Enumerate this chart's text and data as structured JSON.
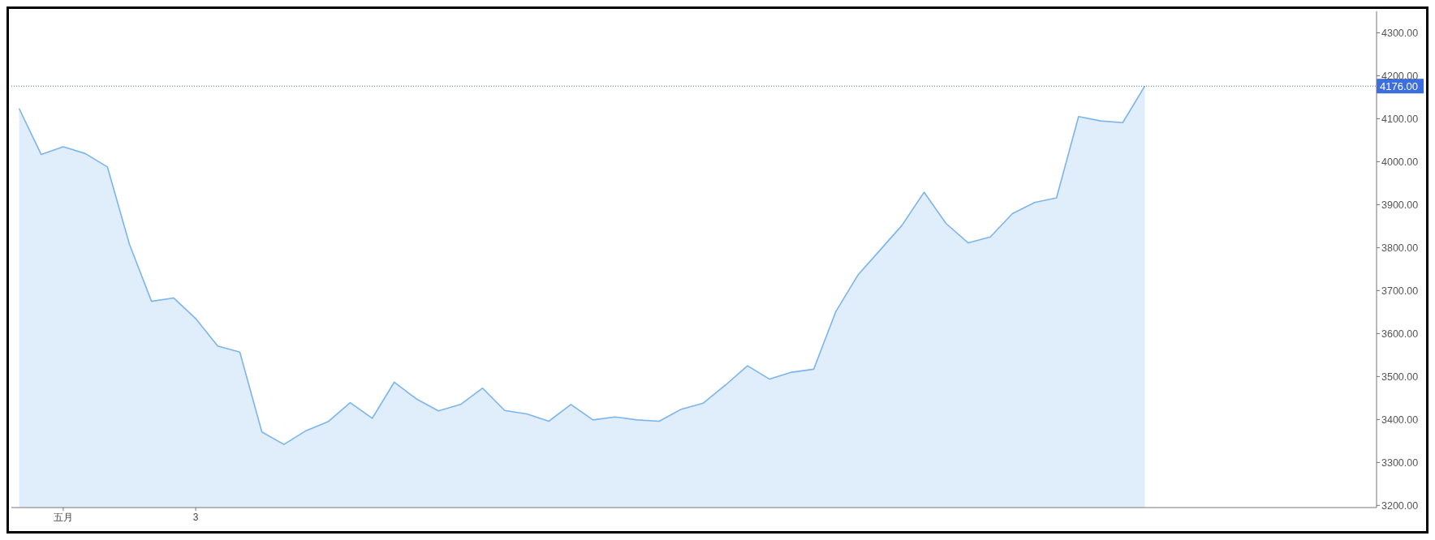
{
  "chart_data": {
    "type": "area",
    "categories": [
      null,
      null,
      "五月",
      null,
      null,
      null,
      null,
      null,
      "3",
      null,
      null,
      null,
      null,
      null,
      null,
      null,
      null,
      null,
      null,
      null,
      null,
      null,
      null,
      null,
      null,
      null,
      null,
      null,
      null,
      null,
      null,
      null,
      null,
      null,
      null,
      null,
      null,
      null,
      null,
      null,
      null,
      null,
      null,
      null,
      null,
      null,
      null,
      null,
      null,
      null,
      null,
      null,
      null,
      null,
      null,
      null,
      null,
      null,
      null,
      null,
      null,
      null
    ],
    "series": [
      {
        "color": "#7cb5ec",
        "values": [
          4124,
          4017,
          4035,
          4019,
          3988,
          3808,
          3675,
          3683,
          3635,
          3571,
          3557,
          3371,
          3342,
          3374,
          3395,
          3439,
          3403,
          3487,
          3448,
          3420,
          3435,
          3473,
          3421,
          3413,
          3396,
          3435,
          3399,
          3406,
          3399,
          3396,
          3424,
          3438,
          3480,
          3525,
          3494,
          3510,
          3517,
          3651,
          3736,
          3794,
          3852,
          3929,
          3856,
          3811,
          3825,
          3879,
          3905,
          3916,
          4105,
          4095,
          4091,
          4176,
          null,
          null,
          null,
          null,
          null,
          null,
          null,
          null,
          null,
          null
        ]
      }
    ],
    "ylim": [
      3195,
      4350
    ],
    "yticks": [
      {
        "value": 3200,
        "label": "3200.00"
      },
      {
        "value": 3300,
        "label": "3300.00"
      },
      {
        "value": 3400,
        "label": "3400.00"
      },
      {
        "value": 3500,
        "label": "3500.00"
      },
      {
        "value": 3600,
        "label": "3600.00"
      },
      {
        "value": 3700,
        "label": "3700.00"
      },
      {
        "value": 3800,
        "label": "3800.00"
      },
      {
        "value": 3900,
        "label": "3900.00"
      },
      {
        "value": 4000,
        "label": "4000.00"
      },
      {
        "value": 4100,
        "label": "4100.00"
      },
      {
        "value": 4200,
        "label": "4200.00"
      },
      {
        "value": 4300,
        "label": "4300.00"
      }
    ],
    "ref_lines": [
      {
        "axis": "y",
        "value": 4176,
        "label": "4176.00",
        "color": "#3c6ee0",
        "line_style": "dotted"
      }
    ],
    "marker": "none"
  }
}
